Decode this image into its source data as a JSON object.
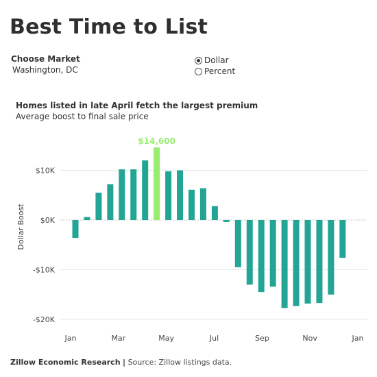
{
  "page": {
    "title": "Best Time to List"
  },
  "controls": {
    "market_label": "Choose Market",
    "market_value": "Washington, DC",
    "options": [
      {
        "label": "Dollar",
        "selected": true
      },
      {
        "label": "Percent",
        "selected": false
      }
    ]
  },
  "chart_heading": "Homes listed in late April fetch the largest premium",
  "chart_subheading": "Average boost to final sale price",
  "footer": {
    "source_org": "Zillow Economic Research",
    "separator": "|",
    "source_text": "Source: Zillow listings data."
  },
  "colors": {
    "bar": "#23a595",
    "highlight": "#98ed6f",
    "axis_text": "#444444",
    "grid": "#e6e6e6",
    "zero_line": "#bcbcbc"
  },
  "chart_data": {
    "type": "bar",
    "ylabel": "Dollar Boost",
    "ylim": [
      -20000,
      20000
    ],
    "y_ticks": [
      10000,
      0,
      -10000,
      -20000
    ],
    "y_tick_labels": [
      "$10K",
      "$0K",
      "-$10K",
      "-$20K"
    ],
    "x_tick_labels": [
      "Jan",
      "Mar",
      "May",
      "Jul",
      "Sep",
      "Nov",
      "Jan"
    ],
    "annotation": {
      "text": "$14,600",
      "value": 14600
    },
    "values": [
      -3600,
      600,
      5500,
      7200,
      10200,
      10200,
      12000,
      14600,
      9800,
      10000,
      6100,
      6400,
      2800,
      -400,
      -9500,
      -13000,
      -14500,
      -13400,
      -17700,
      -17300,
      -16800,
      -16700,
      -15000,
      -7600
    ],
    "highlight_index": 7
  }
}
